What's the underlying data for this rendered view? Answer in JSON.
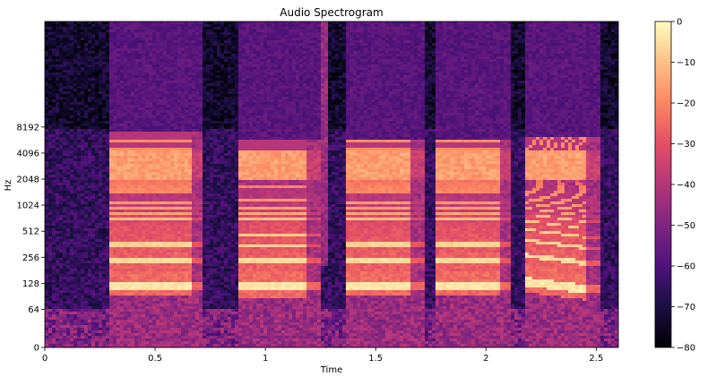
{
  "chart_data": {
    "type": "heatmap",
    "title": "Audio Spectrogram",
    "xlabel": "Time",
    "ylabel": "Hz",
    "xlim": [
      0,
      2.6
    ],
    "x_ticks": [
      0,
      0.5,
      1,
      1.5,
      2,
      2.5
    ],
    "x_tick_labels": [
      "0",
      "0.5",
      "1",
      "1.5",
      "2",
      "2.5"
    ],
    "y_scale": "log2 (frequency)",
    "y_ticks": [
      0,
      64,
      128,
      256,
      512,
      1024,
      2048,
      4096,
      8192
    ],
    "y_tick_labels": [
      "0",
      "64",
      "128",
      "256",
      "512",
      "1024",
      "2048",
      "4096",
      "8192"
    ],
    "ylim": [
      0,
      11025
    ],
    "colorbar": {
      "colormap": "magma",
      "range": [
        -80,
        0
      ],
      "ticks": [
        0,
        -10,
        -20,
        -30,
        -40,
        -50,
        -60,
        -70,
        -80
      ],
      "tick_labels": [
        "0",
        "−10",
        "−20",
        "−30",
        "−40",
        "−50",
        "−60",
        "−70",
        "−80"
      ]
    },
    "events": [
      {
        "start": 0.29,
        "end": 0.66,
        "fundamental_hz": 120,
        "top_hz": 7000,
        "tail_end": 0.72,
        "glide_hz": 0
      },
      {
        "start": 0.88,
        "end": 1.18,
        "fundamental_hz": 118,
        "top_hz": 6000,
        "tail_end": 1.25,
        "glide_hz": 0
      },
      {
        "start": 1.37,
        "end": 1.66,
        "fundamental_hz": 120,
        "top_hz": 6000,
        "tail_end": 1.72,
        "glide_hz": 0
      },
      {
        "start": 1.77,
        "end": 2.06,
        "fundamental_hz": 120,
        "top_hz": 6000,
        "tail_end": 2.12,
        "glide_hz": 0
      },
      {
        "start": 2.17,
        "end": 2.45,
        "fundamental_hz": 135,
        "top_hz": 6500,
        "tail_end": 2.52,
        "glide_hz": -25
      }
    ]
  },
  "colors": {
    "background": "#ffffff",
    "magma_low": "#000004",
    "magma_high": "#fcfdbf"
  }
}
